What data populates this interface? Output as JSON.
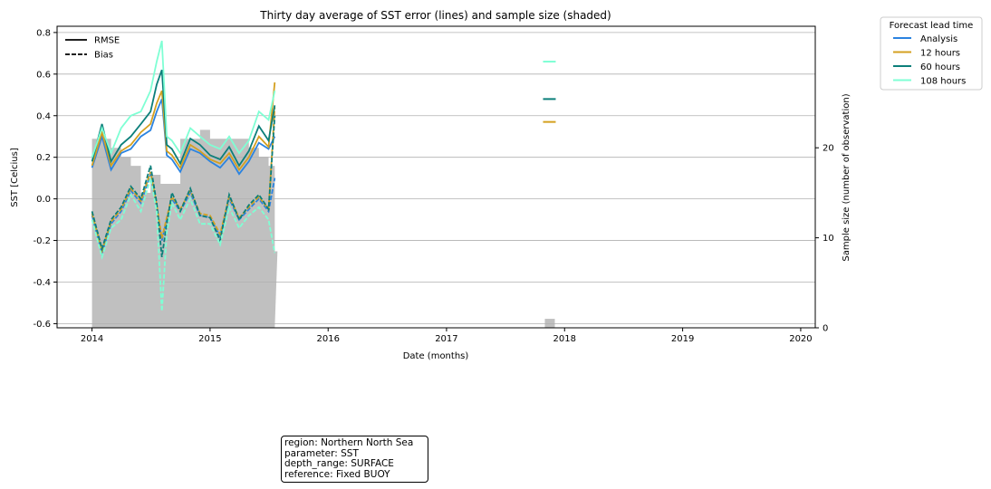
{
  "chart_data": {
    "type": "line",
    "title": "Thirty day average of SST error (lines) and sample size (shaded)",
    "xlabel": "Date (months)",
    "ylabel": "SST [Celcius]",
    "y2label": "Sample size (number of observation)",
    "xlim": [
      "2013-09-15",
      "2020-02-15"
    ],
    "ylim": [
      -0.62,
      0.83
    ],
    "y2lim": [
      0,
      33.5
    ],
    "x_ticks": [
      "2014",
      "2015",
      "2016",
      "2017",
      "2018",
      "2019",
      "2020"
    ],
    "y_ticks": [
      "-0.6",
      "-0.4",
      "-0.2",
      "0.0",
      "0.2",
      "0.4",
      "0.6",
      "0.8"
    ],
    "y2_ticks": [
      "0",
      "10",
      "20"
    ],
    "grid": "horizontal",
    "style_legend": {
      "placement": "top-left",
      "entries": [
        {
          "label": "RMSE",
          "style": "solid"
        },
        {
          "label": "Bias",
          "style": "dashed"
        }
      ]
    },
    "legend": {
      "title": "Forecast lead time",
      "placement": "outside-right-top",
      "entries": [
        "Analysis",
        "12 hours",
        "60 hours",
        "108 hours"
      ]
    },
    "series": [
      {
        "name": "Analysis",
        "color": "#2b83e0",
        "rmse": {
          "x": [
            "2014-01-01",
            "2014-02-01",
            "2014-03-01",
            "2014-04-01",
            "2014-05-01",
            "2014-06-01",
            "2014-07-01",
            "2014-07-20",
            "2014-08-05",
            "2014-08-20",
            "2014-09-05",
            "2014-10-01",
            "2014-11-01",
            "2014-12-01",
            "2015-01-01",
            "2015-02-01",
            "2015-03-01",
            "2015-04-01",
            "2015-05-01",
            "2015-06-01",
            "2015-07-01",
            "2015-07-20"
          ],
          "y": [
            0.15,
            0.3,
            0.14,
            0.22,
            0.24,
            0.3,
            0.33,
            0.42,
            0.48,
            0.21,
            0.19,
            0.13,
            0.24,
            0.22,
            0.18,
            0.15,
            0.2,
            0.12,
            0.18,
            0.27,
            0.24,
            0.3
          ]
        },
        "bias": {
          "x": [
            "2014-01-01",
            "2014-02-01",
            "2014-03-01",
            "2014-04-01",
            "2014-05-01",
            "2014-06-01",
            "2014-07-01",
            "2014-07-20",
            "2014-08-05",
            "2014-08-20",
            "2014-09-05",
            "2014-10-01",
            "2014-11-01",
            "2014-12-01",
            "2015-01-01",
            "2015-02-01",
            "2015-03-01",
            "2015-04-01",
            "2015-05-01",
            "2015-06-01",
            "2015-07-01",
            "2015-07-20"
          ],
          "y": [
            -0.08,
            -0.26,
            -0.12,
            -0.06,
            0.04,
            -0.02,
            0.12,
            -0.04,
            -0.2,
            -0.1,
            0.0,
            -0.06,
            0.03,
            -0.08,
            -0.09,
            -0.18,
            0.0,
            -0.1,
            -0.05,
            0.0,
            -0.06,
            0.1
          ]
        },
        "point": {
          "x": "2017-11-15",
          "y": null
        }
      },
      {
        "name": "12 hours",
        "color": "#d4a020",
        "rmse": {
          "x": [
            "2014-01-01",
            "2014-02-01",
            "2014-03-01",
            "2014-04-01",
            "2014-05-01",
            "2014-06-01",
            "2014-07-01",
            "2014-07-20",
            "2014-08-05",
            "2014-08-20",
            "2014-09-05",
            "2014-10-01",
            "2014-11-01",
            "2014-12-01",
            "2015-01-01",
            "2015-02-01",
            "2015-03-01",
            "2015-04-01",
            "2015-05-01",
            "2015-06-01",
            "2015-07-01",
            "2015-07-20"
          ],
          "y": [
            0.16,
            0.32,
            0.16,
            0.23,
            0.26,
            0.32,
            0.36,
            0.46,
            0.52,
            0.23,
            0.21,
            0.15,
            0.26,
            0.23,
            0.19,
            0.17,
            0.22,
            0.14,
            0.2,
            0.3,
            0.25,
            0.56
          ]
        },
        "bias": {
          "x": [
            "2014-01-01",
            "2014-02-01",
            "2014-03-01",
            "2014-04-01",
            "2014-05-01",
            "2014-06-01",
            "2014-07-01",
            "2014-07-20",
            "2014-08-05",
            "2014-08-20",
            "2014-09-05",
            "2014-10-01",
            "2014-11-01",
            "2014-12-01",
            "2015-01-01",
            "2015-02-01",
            "2015-03-01",
            "2015-04-01",
            "2015-05-01",
            "2015-06-01",
            "2015-07-01",
            "2015-07-20"
          ],
          "y": [
            -0.07,
            -0.25,
            -0.11,
            -0.05,
            0.05,
            -0.01,
            0.13,
            -0.03,
            -0.19,
            -0.09,
            0.01,
            -0.05,
            0.04,
            -0.07,
            -0.08,
            -0.17,
            0.01,
            -0.09,
            -0.04,
            0.01,
            -0.05,
            0.44
          ]
        },
        "point": {
          "x": "2017-11-15",
          "y": 0.37
        }
      },
      {
        "name": "60 hours",
        "color": "#0c7f7a",
        "rmse": {
          "x": [
            "2014-01-01",
            "2014-02-01",
            "2014-03-01",
            "2014-04-01",
            "2014-05-01",
            "2014-06-01",
            "2014-07-01",
            "2014-07-20",
            "2014-08-05",
            "2014-08-20",
            "2014-09-05",
            "2014-10-01",
            "2014-11-01",
            "2014-12-01",
            "2015-01-01",
            "2015-02-01",
            "2015-03-01",
            "2015-04-01",
            "2015-05-01",
            "2015-06-01",
            "2015-07-01",
            "2015-07-20"
          ],
          "y": [
            0.18,
            0.36,
            0.18,
            0.26,
            0.3,
            0.36,
            0.42,
            0.55,
            0.62,
            0.26,
            0.24,
            0.17,
            0.29,
            0.26,
            0.21,
            0.19,
            0.25,
            0.16,
            0.23,
            0.35,
            0.28,
            0.45
          ]
        },
        "bias": {
          "x": [
            "2014-01-01",
            "2014-02-01",
            "2014-03-01",
            "2014-04-01",
            "2014-05-01",
            "2014-06-01",
            "2014-07-01",
            "2014-07-20",
            "2014-08-05",
            "2014-08-20",
            "2014-09-05",
            "2014-10-01",
            "2014-11-01",
            "2014-12-01",
            "2015-01-01",
            "2015-02-01",
            "2015-03-01",
            "2015-04-01",
            "2015-05-01",
            "2015-06-01",
            "2015-07-01",
            "2015-07-20"
          ],
          "y": [
            -0.06,
            -0.24,
            -0.1,
            -0.04,
            0.06,
            0.0,
            0.16,
            -0.02,
            -0.28,
            -0.12,
            0.03,
            -0.06,
            0.05,
            -0.08,
            -0.09,
            -0.2,
            0.02,
            -0.1,
            -0.03,
            0.02,
            -0.05,
            0.4
          ]
        },
        "point": {
          "x": "2017-11-15",
          "y": 0.48
        }
      },
      {
        "name": "108 hours",
        "color": "#7fffd4",
        "rmse": {
          "x": [
            "2014-01-01",
            "2014-02-01",
            "2014-03-01",
            "2014-04-01",
            "2014-05-01",
            "2014-06-01",
            "2014-07-01",
            "2014-07-20",
            "2014-08-05",
            "2014-08-20",
            "2014-09-05",
            "2014-10-01",
            "2014-11-01",
            "2014-12-01",
            "2015-01-01",
            "2015-02-01",
            "2015-03-01",
            "2015-04-01",
            "2015-05-01",
            "2015-06-01",
            "2015-07-01",
            "2015-07-20"
          ],
          "y": [
            0.2,
            0.34,
            0.22,
            0.34,
            0.4,
            0.42,
            0.52,
            0.66,
            0.76,
            0.3,
            0.28,
            0.22,
            0.34,
            0.3,
            0.26,
            0.24,
            0.3,
            0.22,
            0.28,
            0.42,
            0.38,
            0.52
          ]
        },
        "bias": {
          "x": [
            "2014-01-01",
            "2014-02-01",
            "2014-03-01",
            "2014-04-01",
            "2014-05-01",
            "2014-06-01",
            "2014-07-01",
            "2014-07-20",
            "2014-08-05",
            "2014-08-20",
            "2014-09-05",
            "2014-10-01",
            "2014-11-01",
            "2014-12-01",
            "2015-01-01",
            "2015-02-01",
            "2015-03-01",
            "2015-04-01",
            "2015-05-01",
            "2015-06-01",
            "2015-07-01",
            "2015-07-20"
          ],
          "y": [
            -0.1,
            -0.28,
            -0.14,
            -0.1,
            0.02,
            -0.06,
            0.1,
            -0.06,
            -0.54,
            -0.16,
            -0.02,
            -0.1,
            0.0,
            -0.12,
            -0.12,
            -0.22,
            -0.04,
            -0.14,
            -0.08,
            -0.04,
            -0.1,
            -0.26
          ]
        },
        "point": {
          "x": "2017-11-15",
          "y": 0.66
        }
      }
    ],
    "sample_size": {
      "color": "#c0c0c0",
      "x": [
        "2014-01-01",
        "2014-02-01",
        "2014-03-01",
        "2014-04-01",
        "2014-05-01",
        "2014-06-01",
        "2014-07-01",
        "2014-08-01",
        "2014-09-01",
        "2014-10-01",
        "2014-11-01",
        "2014-12-01",
        "2015-01-01",
        "2015-02-01",
        "2015-03-01",
        "2015-04-01",
        "2015-05-01",
        "2015-06-01",
        "2015-07-01",
        "2015-07-20",
        "2017-11-01",
        "2017-11-15"
      ],
      "y": [
        21,
        21,
        20,
        19,
        18,
        15,
        17,
        16,
        16,
        21,
        21,
        22,
        21,
        21,
        21,
        21,
        20,
        19,
        18,
        8.5,
        1,
        1
      ]
    }
  },
  "info_box": {
    "lines": [
      "region: Northern North Sea",
      "parameter: SST",
      "depth_range: SURFACE",
      "reference: Fixed BUOY"
    ]
  }
}
